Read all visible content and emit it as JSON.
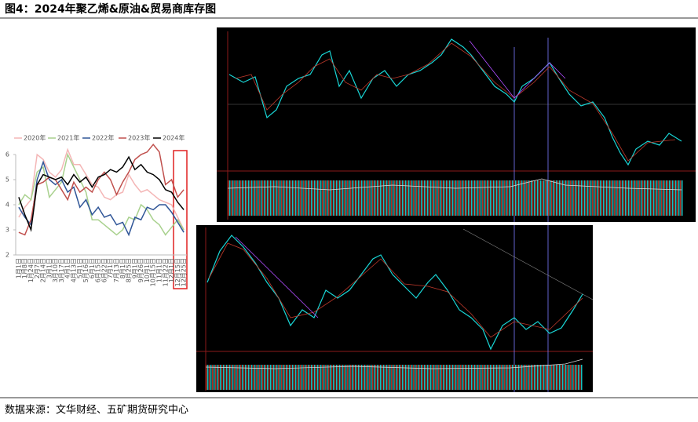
{
  "header": {
    "title": "图4：2024年聚乙烯&原油&贸易商库存图"
  },
  "chart_data": {
    "type": "line",
    "categories": [
      "1月1日",
      "1月8日",
      "1月24日",
      "2月7日",
      "2月14日",
      "3月1日",
      "3月10日",
      "3月17日",
      "4月1日",
      "4月13日",
      "5月1日",
      "5月16日",
      "6月1日",
      "6月15日",
      "6月22日",
      "7月1日",
      "7月13日",
      "8月1日",
      "8月25日",
      "9月1日",
      "9月26日",
      "10月1日",
      "10月15日",
      "11月1日",
      "11月22日",
      "12月1日",
      "12月15日",
      "12月25日"
    ],
    "series": [
      {
        "name": "2020年",
        "color": "#f4b6b6",
        "values": [
          3.5,
          3.9,
          4.2,
          6.0,
          5.8,
          5.3,
          5.1,
          5.4,
          6.2,
          5.6,
          5.6,
          5.2,
          4.8,
          4.7,
          4.3,
          4.2,
          4.4,
          4.5,
          5.2,
          4.8,
          4.5,
          4.6,
          4.4,
          4.2,
          4.1,
          4.0,
          3.5,
          3.0
        ]
      },
      {
        "name": "2021年",
        "color": "#a9d18e",
        "values": [
          4.0,
          4.4,
          4.2,
          5.3,
          5.5,
          4.3,
          4.6,
          4.9,
          6.0,
          5.5,
          5.0,
          4.5,
          3.4,
          3.4,
          3.2,
          3.0,
          2.8,
          3.0,
          3.5,
          3.4,
          4.0,
          3.8,
          3.4,
          3.2,
          2.8,
          3.1,
          3.4,
          3.0
        ]
      },
      {
        "name": "2022年",
        "color": "#2f5597",
        "values": [
          3.9,
          3.5,
          3.2,
          5.0,
          5.7,
          5.0,
          4.8,
          5.0,
          4.5,
          4.7,
          3.9,
          4.2,
          3.6,
          3.9,
          3.5,
          3.6,
          3.2,
          3.3,
          2.8,
          3.5,
          3.4,
          3.9,
          3.8,
          4.0,
          4.0,
          3.7,
          3.3,
          2.9
        ]
      },
      {
        "name": "2023年",
        "color": "#c0504d",
        "values": [
          2.9,
          2.8,
          3.4,
          4.8,
          4.9,
          5.1,
          5.0,
          4.6,
          4.2,
          4.9,
          4.5,
          4.7,
          4.5,
          5.0,
          5.3,
          5.0,
          4.4,
          4.9,
          5.3,
          5.8,
          6.0,
          6.1,
          6.4,
          6.1,
          4.8,
          5.0,
          4.3,
          4.6
        ]
      },
      {
        "name": "2024年",
        "color": "#000000",
        "values": [
          4.3,
          3.6,
          3.0,
          4.8,
          5.2,
          5.1,
          5.0,
          5.1,
          4.8,
          5.2,
          4.9,
          5.1,
          4.7,
          5.1,
          5.2,
          5.4,
          5.3,
          5.5,
          5.9,
          5.4,
          5.6,
          5.3,
          5.2,
          5.0,
          4.6,
          4.5,
          4.1,
          3.8
        ]
      }
    ],
    "ylim": [
      2,
      6
    ],
    "yticks": [
      2,
      3,
      4,
      5,
      6
    ]
  },
  "footer": {
    "source": "数据来源：文华财经、五矿期货研究中心"
  }
}
